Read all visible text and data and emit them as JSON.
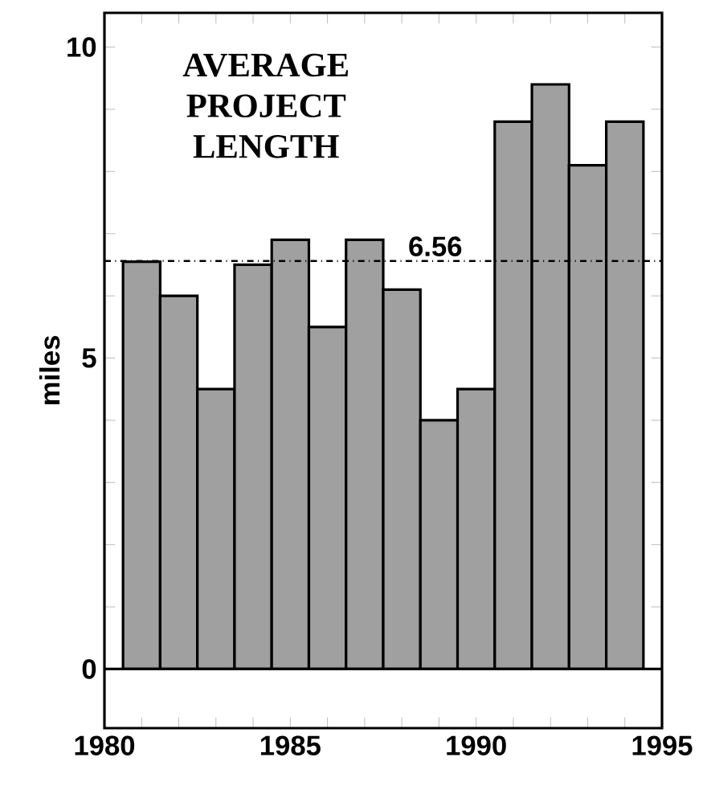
{
  "chart_data": {
    "type": "bar",
    "title": "AVERAGE PROJECT LENGTH",
    "ylabel": "miles",
    "x": [
      1981,
      1982,
      1983,
      1984,
      1985,
      1986,
      1987,
      1988,
      1989,
      1990,
      1991,
      1992,
      1993,
      1994
    ],
    "values": [
      6.55,
      6.0,
      4.5,
      6.5,
      6.9,
      5.5,
      6.9,
      6.1,
      4.0,
      4.5,
      8.8,
      9.4,
      8.1,
      8.8
    ],
    "color": "#a0a0a0",
    "xlim": [
      1980,
      1995
    ],
    "xticks": [
      1980,
      {
        "value": 1981,
        "label": null
      },
      {
        "value": 1982,
        "label": null
      },
      {
        "value": 1983,
        "label": null
      },
      {
        "value": 1984,
        "label": null
      },
      1985,
      {
        "value": 1986,
        "label": null
      },
      {
        "value": 1987,
        "label": null
      },
      {
        "value": 1988,
        "label": null
      },
      {
        "value": 1989,
        "label": null
      },
      1990,
      {
        "value": 1991,
        "label": null
      },
      {
        "value": 1992,
        "label": null
      },
      {
        "value": 1993,
        "label": null
      },
      {
        "value": 1994,
        "label": null
      },
      1995
    ],
    "ylim": [
      -0.95,
      10.55
    ],
    "yticks": [
      0,
      {
        "value": 1,
        "label": null
      },
      {
        "value": 2,
        "label": null
      },
      {
        "value": 3,
        "label": null
      },
      {
        "value": 4,
        "label": null
      },
      5,
      {
        "value": 6,
        "label": null
      },
      {
        "value": 7,
        "label": null
      },
      {
        "value": 8,
        "label": null
      },
      {
        "value": 9,
        "label": null
      },
      10
    ],
    "ref_lines": [
      {
        "axis": "y",
        "value": 6.56,
        "label": "6.56",
        "line_style": "dashed"
      }
    ]
  }
}
